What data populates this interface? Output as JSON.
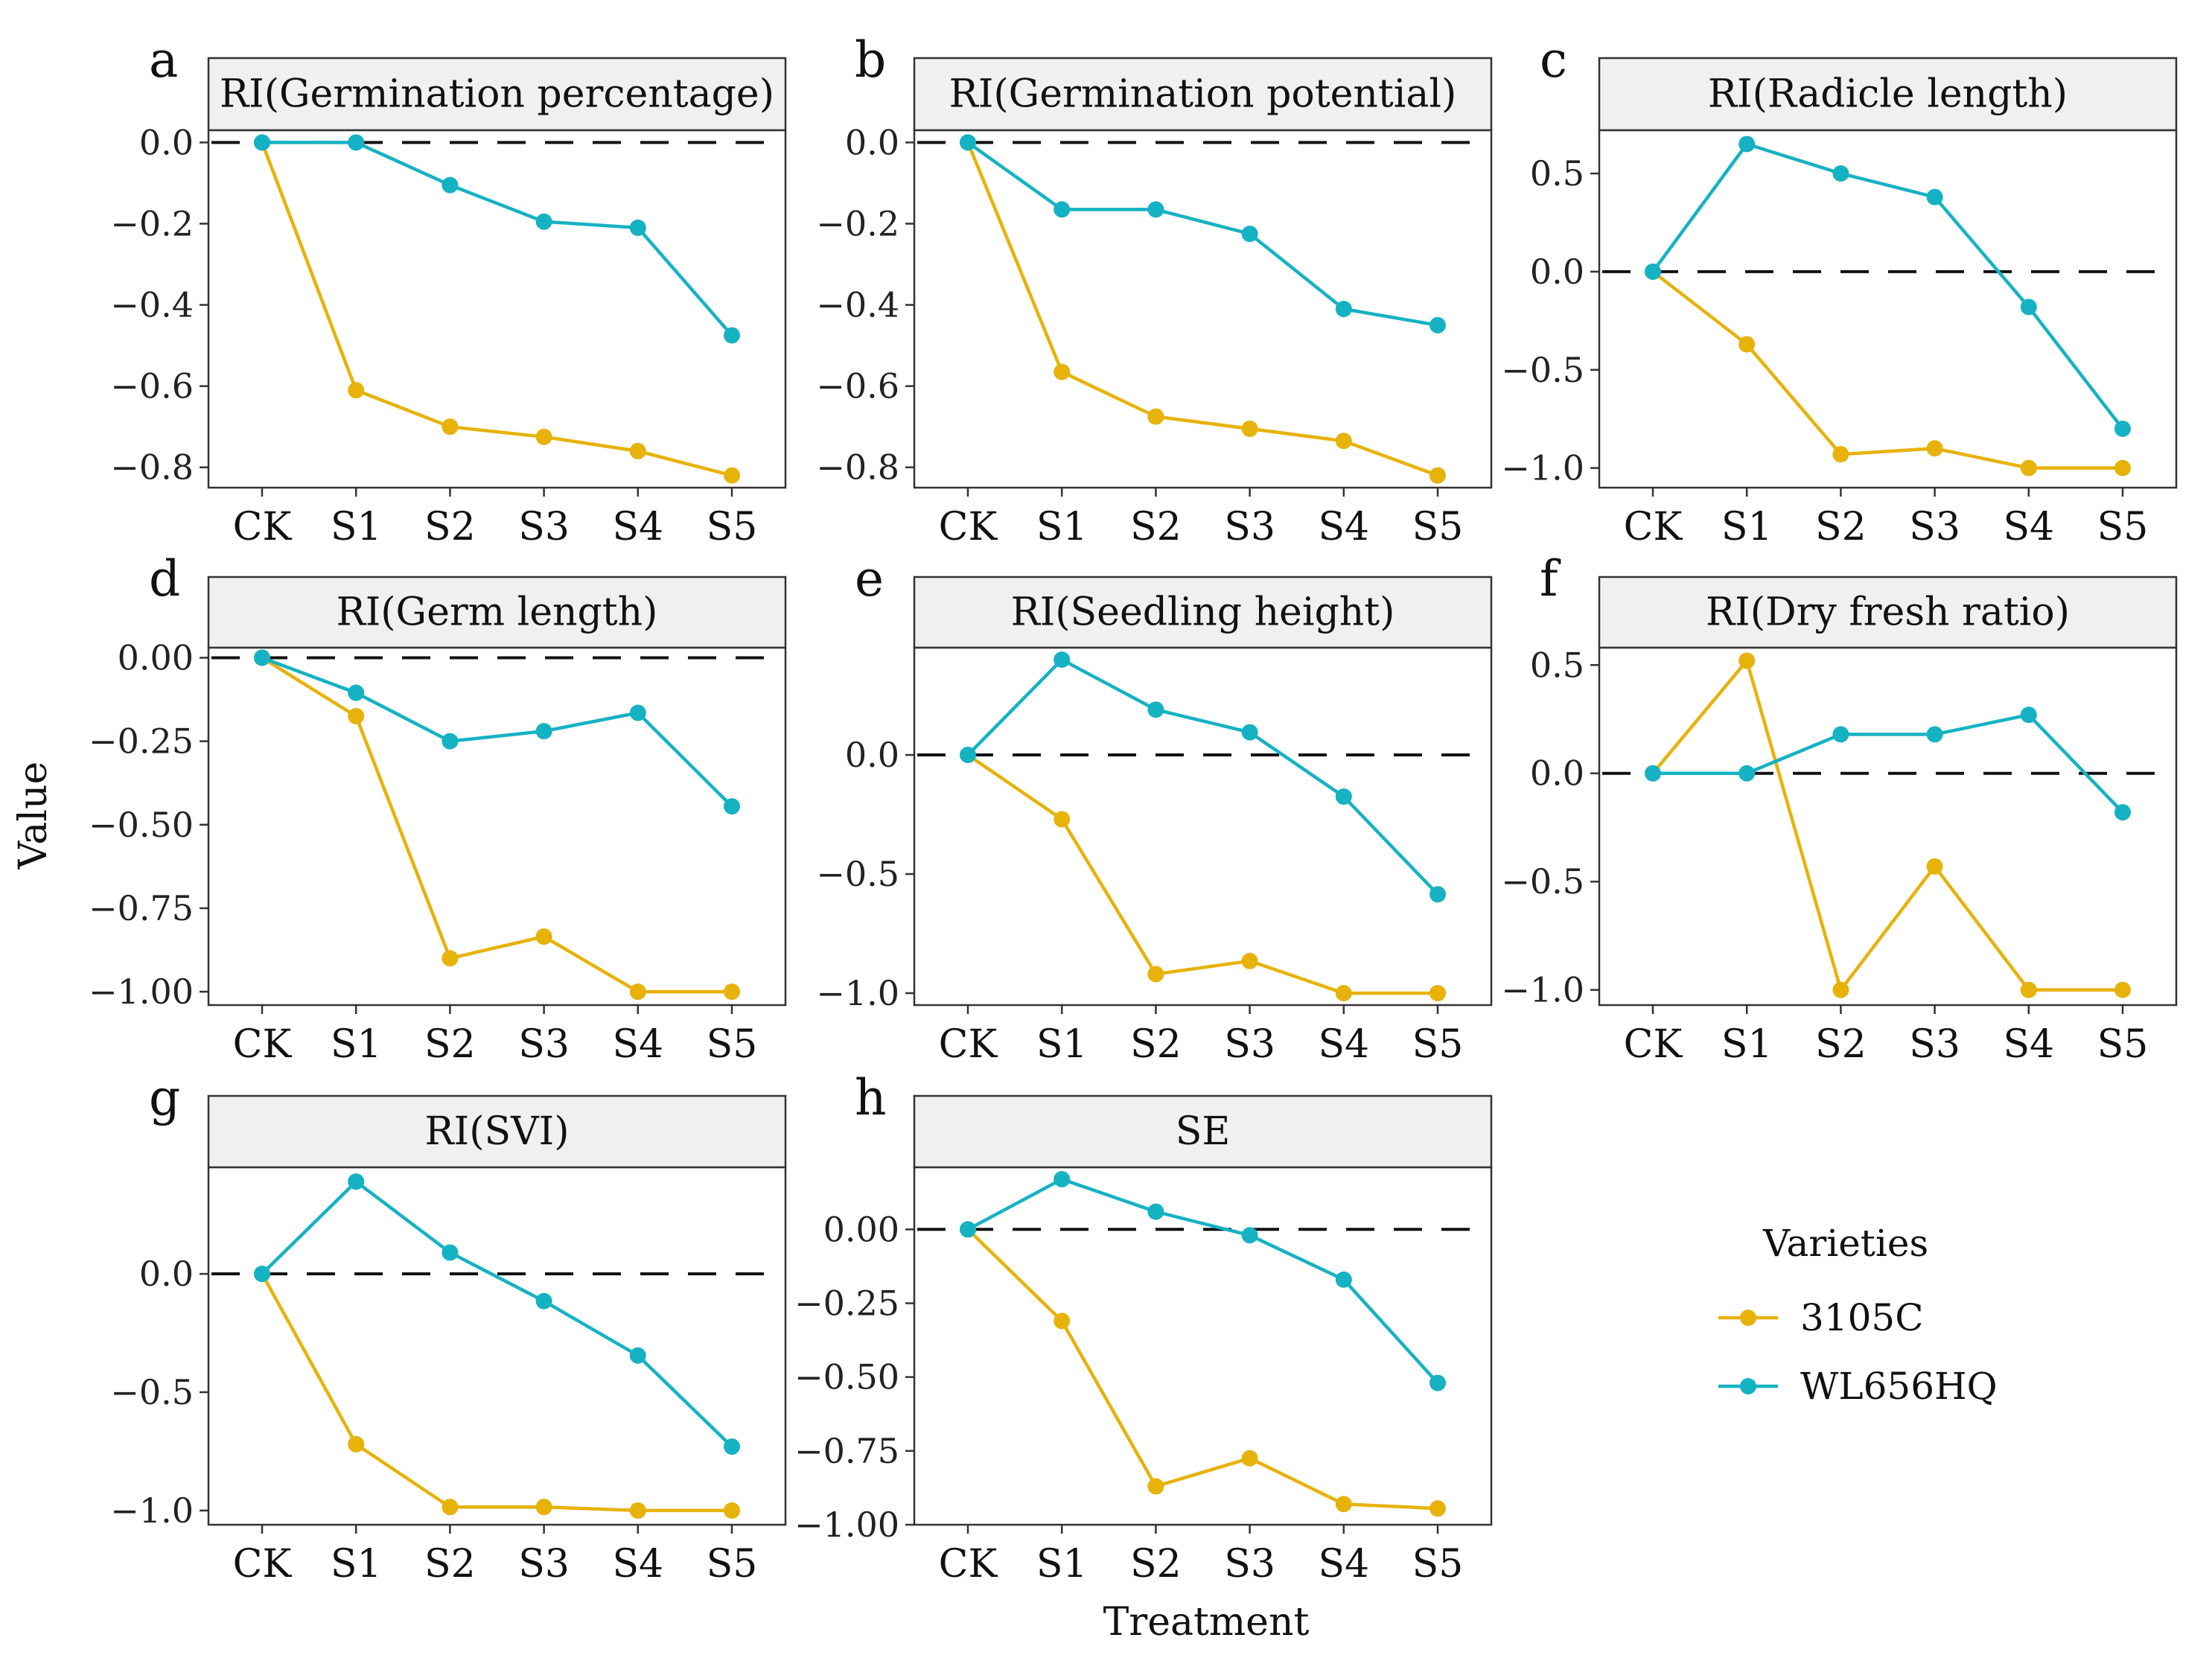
{
  "figure": {
    "ylabel": "Value",
    "xlabel": "Treatment"
  },
  "legend": {
    "title": "Varieties",
    "items": [
      {
        "name": "3105C",
        "color": "#E7B20A"
      },
      {
        "name": "WL656HQ",
        "color": "#15B2C3"
      }
    ]
  },
  "chart_data": [
    {
      "type": "line",
      "panel": "a",
      "title": "RI(Germination percentage)",
      "categories": [
        "CK",
        "S1",
        "S2",
        "S3",
        "S4",
        "S5"
      ],
      "ylim": [
        -0.85,
        0.03
      ],
      "yticks": [
        0.0,
        -0.2,
        -0.4,
        -0.6,
        -0.8
      ],
      "ytick_labels": [
        "0.0",
        "−0.2",
        "−0.4",
        "−0.6",
        "−0.8"
      ],
      "reference_line": 0,
      "series": [
        {
          "name": "3105C",
          "values": [
            0,
            -0.61,
            -0.7,
            -0.725,
            -0.76,
            -0.82
          ]
        },
        {
          "name": "WL656HQ",
          "values": [
            0,
            0,
            -0.105,
            -0.195,
            -0.21,
            -0.475
          ]
        }
      ]
    },
    {
      "type": "line",
      "panel": "b",
      "title": "RI(Germination potential)",
      "categories": [
        "CK",
        "S1",
        "S2",
        "S3",
        "S4",
        "S5"
      ],
      "ylim": [
        -0.85,
        0.03
      ],
      "yticks": [
        0.0,
        -0.2,
        -0.4,
        -0.6,
        -0.8
      ],
      "ytick_labels": [
        "0.0",
        "−0.2",
        "−0.4",
        "−0.6",
        "−0.8"
      ],
      "reference_line": 0,
      "series": [
        {
          "name": "3105C",
          "values": [
            0,
            -0.565,
            -0.675,
            -0.705,
            -0.735,
            -0.82
          ]
        },
        {
          "name": "WL656HQ",
          "values": [
            0,
            -0.165,
            -0.165,
            -0.225,
            -0.41,
            -0.45
          ]
        }
      ]
    },
    {
      "type": "line",
      "panel": "c",
      "title": "RI(Radicle length)",
      "categories": [
        "CK",
        "S1",
        "S2",
        "S3",
        "S4",
        "S5"
      ],
      "ylim": [
        -1.1,
        0.72
      ],
      "yticks": [
        0.5,
        0.0,
        -0.5,
        -1.0
      ],
      "ytick_labels": [
        "0.5",
        "0.0",
        "−0.5",
        "−1.0"
      ],
      "reference_line": 0,
      "series": [
        {
          "name": "3105C",
          "values": [
            0,
            -0.37,
            -0.93,
            -0.9,
            -1.0,
            -1.0
          ]
        },
        {
          "name": "WL656HQ",
          "values": [
            0,
            0.65,
            0.5,
            0.38,
            -0.18,
            -0.8
          ]
        }
      ]
    },
    {
      "type": "line",
      "panel": "d",
      "title": "RI(Germ length)",
      "categories": [
        "CK",
        "S1",
        "S2",
        "S3",
        "S4",
        "S5"
      ],
      "ylim": [
        -1.04,
        0.03
      ],
      "yticks": [
        0.0,
        -0.25,
        -0.5,
        -0.75,
        -1.0
      ],
      "ytick_labels": [
        "0.00",
        "−0.25",
        "−0.50",
        "−0.75",
        "−1.00"
      ],
      "reference_line": 0,
      "series": [
        {
          "name": "3105C",
          "values": [
            0,
            -0.175,
            -0.9,
            -0.835,
            -1.0,
            -1.0
          ]
        },
        {
          "name": "WL656HQ",
          "values": [
            0,
            -0.105,
            -0.25,
            -0.22,
            -0.165,
            -0.445
          ]
        }
      ]
    },
    {
      "type": "line",
      "panel": "e",
      "title": "RI(Seedling height)",
      "categories": [
        "CK",
        "S1",
        "S2",
        "S3",
        "S4",
        "S5"
      ],
      "ylim": [
        -1.05,
        0.45
      ],
      "yticks": [
        0.0,
        -0.5,
        -1.0
      ],
      "ytick_labels": [
        "0.0",
        "−0.5",
        "−1.0"
      ],
      "reference_line": 0,
      "series": [
        {
          "name": "3105C",
          "values": [
            0,
            -0.27,
            -0.92,
            -0.865,
            -1.0,
            -1.0
          ]
        },
        {
          "name": "WL656HQ",
          "values": [
            0,
            0.4,
            0.19,
            0.095,
            -0.175,
            -0.585
          ]
        }
      ]
    },
    {
      "type": "line",
      "panel": "f",
      "title": "RI(Dry fresh ratio)",
      "categories": [
        "CK",
        "S1",
        "S2",
        "S3",
        "S4",
        "S5"
      ],
      "ylim": [
        -1.07,
        0.58
      ],
      "yticks": [
        0.5,
        0.0,
        -0.5,
        -1.0
      ],
      "ytick_labels": [
        "0.5",
        "0.0",
        "−0.5",
        "−1.0"
      ],
      "reference_line": 0,
      "series": [
        {
          "name": "3105C",
          "values": [
            0,
            0.52,
            -1.0,
            -0.43,
            -1.0,
            -1.0
          ]
        },
        {
          "name": "WL656HQ",
          "values": [
            0,
            0,
            0.18,
            0.18,
            0.27,
            -0.18
          ]
        }
      ]
    },
    {
      "type": "line",
      "panel": "g",
      "title": "RI(SVI)",
      "categories": [
        "CK",
        "S1",
        "S2",
        "S3",
        "S4",
        "S5"
      ],
      "ylim": [
        -1.06,
        0.45
      ],
      "yticks": [
        0.0,
        -0.5,
        -1.0
      ],
      "ytick_labels": [
        "0.0",
        "−0.5",
        "−1.0"
      ],
      "reference_line": 0,
      "series": [
        {
          "name": "3105C",
          "values": [
            0,
            -0.72,
            -0.985,
            -0.985,
            -1.0,
            -1.0
          ]
        },
        {
          "name": "WL656HQ",
          "values": [
            0,
            0.39,
            0.09,
            -0.115,
            -0.345,
            -0.73
          ]
        }
      ]
    },
    {
      "type": "line",
      "panel": "h",
      "title": "SE",
      "categories": [
        "CK",
        "S1",
        "S2",
        "S3",
        "S4",
        "S5"
      ],
      "ylim": [
        -1.0,
        0.21
      ],
      "yticks": [
        0.0,
        -0.25,
        -0.5,
        -0.75,
        -1.0
      ],
      "ytick_labels": [
        "0.00",
        "−0.25",
        "−0.50",
        "−0.75",
        "−1.00"
      ],
      "reference_line": 0,
      "series": [
        {
          "name": "3105C",
          "values": [
            0,
            -0.31,
            -0.87,
            -0.775,
            -0.93,
            -0.945
          ]
        },
        {
          "name": "WL656HQ",
          "values": [
            0,
            0.17,
            0.06,
            -0.02,
            -0.17,
            -0.52
          ]
        }
      ]
    }
  ]
}
